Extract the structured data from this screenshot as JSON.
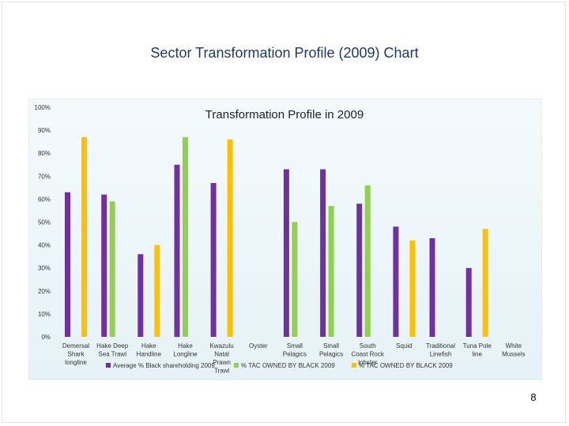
{
  "slide": {
    "title": "Sector Transformation Profile (2009) Chart",
    "page_number": "8"
  },
  "chart_data": {
    "type": "bar",
    "title": "Transformation Profile in 2009",
    "xlabel": "",
    "ylabel": "",
    "ylim": [
      0,
      100
    ],
    "y_ticks": [
      "0%",
      "10%",
      "20%",
      "30%",
      "40%",
      "50%",
      "60%",
      "70%",
      "80%",
      "90%",
      "100%"
    ],
    "categories": [
      [
        "Demersal",
        "Shark",
        "longline"
      ],
      [
        "Hake Deep",
        "Sea Trawl"
      ],
      [
        "Hake",
        "Handline"
      ],
      [
        "Hake",
        "Longline"
      ],
      [
        "Kwazulu",
        "Natal",
        "Prawn",
        "Trawl"
      ],
      [
        "Oyster"
      ],
      [
        "Small",
        "Pelagics"
      ],
      [
        "Small",
        "Pelagics"
      ],
      [
        "South",
        "Coast Rock",
        "lobster"
      ],
      [
        "Squid"
      ],
      [
        "Traditional",
        "Linefish"
      ],
      [
        "Tuna Pole",
        "line"
      ],
      [
        "White",
        "Mussels"
      ]
    ],
    "series": [
      {
        "name": "Average % Black shareholding 2009",
        "color": "#7030a0",
        "values": [
          63,
          62,
          36,
          75,
          67,
          null,
          73,
          73,
          58,
          48,
          43,
          30,
          null
        ]
      },
      {
        "name": "% TAC OWNED BY BLACK 2009",
        "color": "#92d050",
        "values": [
          null,
          59,
          null,
          87,
          null,
          null,
          50,
          57,
          66,
          null,
          null,
          null,
          null
        ]
      },
      {
        "name": "% TAC OWNED BY BLACK 2009",
        "color": "#ffc000",
        "values": [
          87,
          null,
          40,
          null,
          86,
          null,
          null,
          null,
          null,
          42,
          null,
          47,
          null
        ]
      }
    ],
    "grid": false,
    "legend_position": "bottom"
  }
}
